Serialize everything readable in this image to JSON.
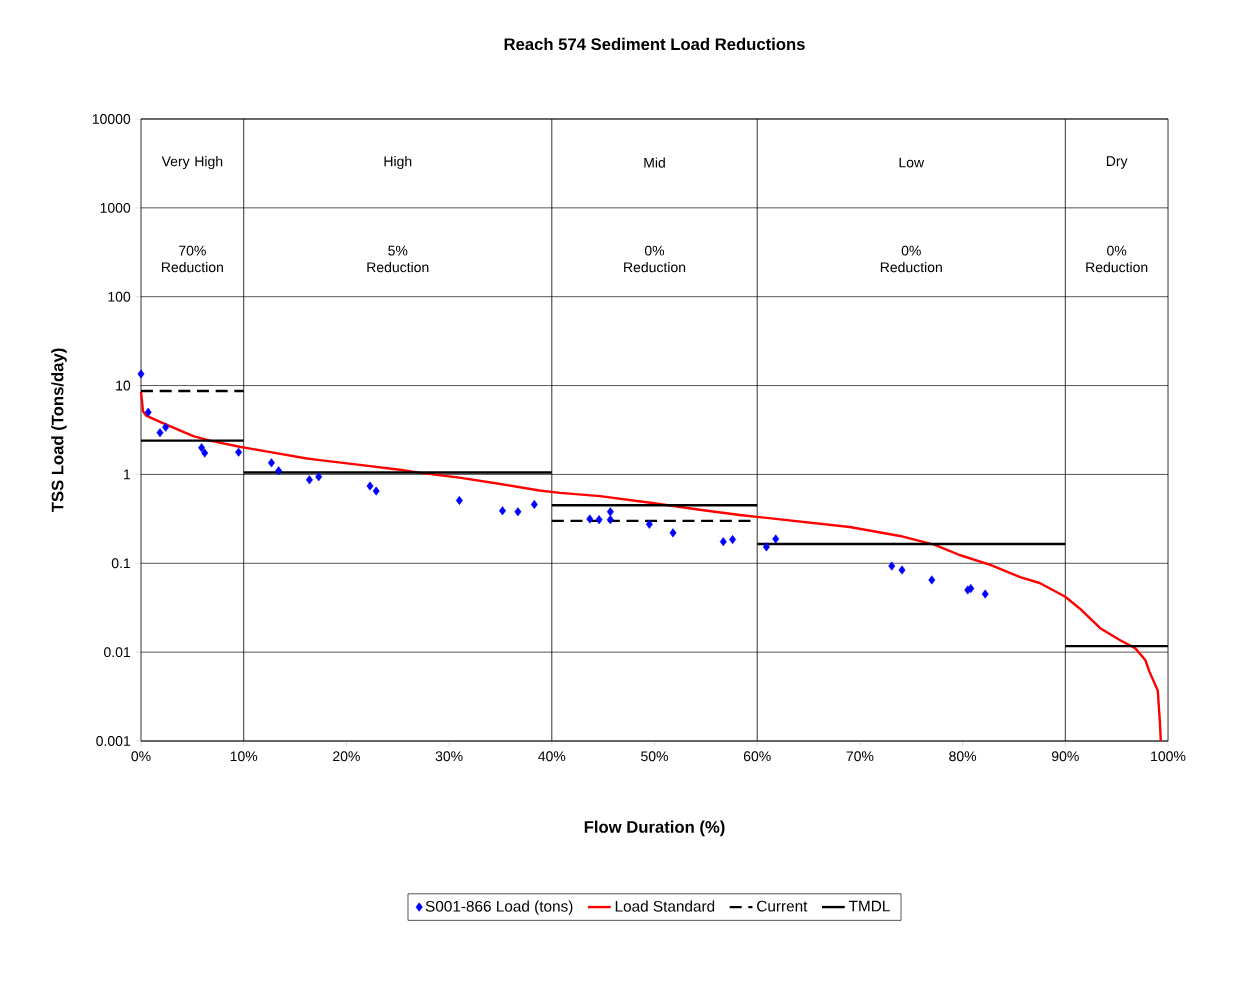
{
  "chart_data": {
    "type": "line",
    "title": "Reach 574 Sediment Load Reductions",
    "xlabel": "Flow Duration (%)",
    "ylabel": "TSS Load (Tons/day)",
    "log": "y",
    "grid": "y",
    "legend": "bottom",
    "xlim": [
      0,
      100
    ],
    "ylim": [
      0.001,
      10000
    ],
    "xticks": [
      {
        "value": 0,
        "label": "0%"
      },
      {
        "value": 10,
        "label": "10%"
      },
      {
        "value": 20,
        "label": "20%"
      },
      {
        "value": 30,
        "label": "30%"
      },
      {
        "value": 40,
        "label": "40%"
      },
      {
        "value": 50,
        "label": "50%"
      },
      {
        "value": 60,
        "label": "60%"
      },
      {
        "value": 70,
        "label": "70%"
      },
      {
        "value": 80,
        "label": "80%"
      },
      {
        "value": 90,
        "label": "90%"
      },
      {
        "value": 100,
        "label": "100%"
      }
    ],
    "yticks": [
      0.001,
      0.01,
      0.1,
      1,
      10,
      100,
      1000,
      10000
    ],
    "ref_lines": [
      {
        "axis": "x",
        "value": 10,
        "color": "#000000"
      },
      {
        "axis": "x",
        "value": 40,
        "color": "#000000"
      },
      {
        "axis": "x",
        "value": 60,
        "color": "#000000"
      },
      {
        "axis": "x",
        "value": 90,
        "color": "#000000"
      }
    ],
    "annotations": [
      "Very High",
      "High",
      "Mid",
      "Low",
      "Dry",
      "70% Reduction",
      "5% Reduction",
      "0% Reduction",
      "0% Reduction",
      "0% Reduction"
    ],
    "series": [
      {
        "name": "S001-866 Load (tons)",
        "type": "scatter",
        "marker": "diamond",
        "color": "#0000ff",
        "x": [
          0,
          0.7,
          1.85,
          2.4,
          5.9,
          6.2,
          9.5,
          12.7,
          13.4,
          16.4,
          17.3,
          22.3,
          22.9,
          31.0,
          35.2,
          36.7,
          38.3,
          43.7,
          44.6,
          45.7,
          45.7,
          49.5,
          51.8,
          56.7,
          57.6,
          60.9,
          61.8,
          73.1,
          74.1,
          77.0,
          80.5,
          80.8,
          82.2
        ],
        "values": [
          13.5,
          5.0,
          2.95,
          3.4,
          2.0,
          1.74,
          1.78,
          1.35,
          1.1,
          0.87,
          0.94,
          0.74,
          0.65,
          0.51,
          0.39,
          0.38,
          0.46,
          0.315,
          0.31,
          0.38,
          0.31,
          0.275,
          0.22,
          0.175,
          0.185,
          0.153,
          0.188,
          0.093,
          0.084,
          0.065,
          0.05,
          0.052,
          0.045
        ]
      },
      {
        "name": "Load Standard",
        "color": "#ff0000",
        "x": [
          0,
          0.2,
          0.5,
          1.85,
          3.6,
          5.1,
          6.7,
          9.6,
          12.6,
          16,
          17.4,
          21.3,
          25.2,
          27.2,
          31,
          35,
          38.8,
          40.8,
          44.7,
          49.6,
          54.4,
          58.3,
          69,
          73.9,
          77.3,
          79.7,
          82.7,
          85.6,
          87.5,
          90,
          91.4,
          93.4,
          95.3,
          96.8,
          97.8,
          98.2,
          99,
          99.2,
          99.3
        ],
        "values": [
          8.5,
          5.1,
          4.6,
          3.9,
          3.2,
          2.7,
          2.4,
          2.05,
          1.78,
          1.52,
          1.45,
          1.28,
          1.13,
          1.04,
          0.92,
          0.78,
          0.66,
          0.62,
          0.57,
          0.48,
          0.4,
          0.35,
          0.256,
          0.203,
          0.161,
          0.124,
          0.096,
          0.07,
          0.06,
          0.042,
          0.031,
          0.0186,
          0.0137,
          0.0111,
          0.0081,
          0.006,
          0.0037,
          0.0017,
          0.001
        ]
      },
      {
        "name": "Current",
        "line_style": "dashed",
        "color": "#000000",
        "x": [
          0,
          10
        ],
        "values": [
          8.7,
          8.7
        ]
      },
      {
        "line_style": "dashed",
        "color": "#000000",
        "x": [
          40,
          60
        ],
        "values": [
          0.3,
          0.3
        ]
      },
      {
        "name": "TMDL",
        "line_style": "solid",
        "color": "#000000",
        "x": [
          0,
          10
        ],
        "values": [
          2.4,
          2.4
        ]
      },
      {
        "line_style": "solid",
        "color": "#000000",
        "x": [
          10,
          40
        ],
        "values": [
          1.05,
          1.05
        ]
      },
      {
        "line_style": "solid",
        "color": "#000000",
        "x": [
          40,
          60
        ],
        "values": [
          0.45,
          0.45
        ]
      },
      {
        "line_style": "solid",
        "color": "#000000",
        "x": [
          60,
          90
        ],
        "values": [
          0.165,
          0.165
        ]
      },
      {
        "line_style": "solid",
        "color": "#000000",
        "x": [
          90,
          100
        ],
        "values": [
          0.0117,
          0.0117
        ]
      }
    ]
  }
}
